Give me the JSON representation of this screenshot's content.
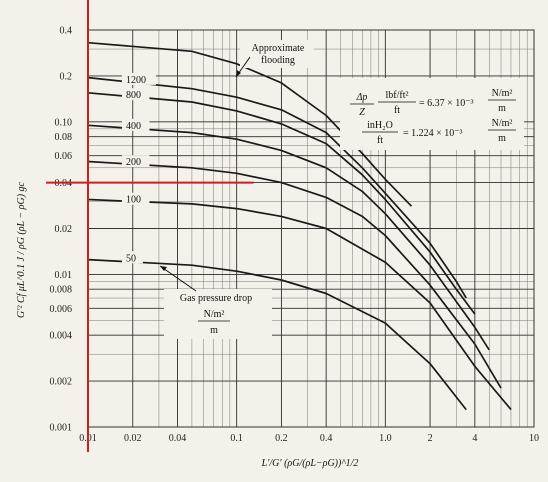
{
  "chart_data": {
    "type": "line",
    "xscale": "log",
    "yscale": "log",
    "xlim": [
      0.01,
      10
    ],
    "ylim": [
      0.001,
      0.4
    ],
    "grid": true,
    "x_ticks": [
      {
        "value": 0.01,
        "label": "0.01"
      },
      {
        "value": 0.02,
        "label": "0.02"
      },
      {
        "value": 0.04,
        "label": "0.04"
      },
      {
        "value": 0.1,
        "label": "0.1"
      },
      {
        "value": 0.2,
        "label": "0.2"
      },
      {
        "value": 0.4,
        "label": "0.4"
      },
      {
        "value": 1,
        "label": "1.0"
      },
      {
        "value": 2,
        "label": "2"
      },
      {
        "value": 4,
        "label": "4"
      },
      {
        "value": 10,
        "label": "10"
      }
    ],
    "y_ticks": [
      {
        "value": 0.001,
        "label": "0.001"
      },
      {
        "value": 0.002,
        "label": "0.002"
      },
      {
        "value": 0.004,
        "label": "0.004"
      },
      {
        "value": 0.006,
        "label": "0.006"
      },
      {
        "value": 0.008,
        "label": "0.008"
      },
      {
        "value": 0.01,
        "label": "0.01"
      },
      {
        "value": 0.02,
        "label": "0.02"
      },
      {
        "value": 0.04,
        "label": "0.04"
      },
      {
        "value": 0.06,
        "label": "0.06"
      },
      {
        "value": 0.08,
        "label": "0.08"
      },
      {
        "value": 0.1,
        "label": "0.10"
      },
      {
        "value": 0.2,
        "label": "0.2"
      },
      {
        "value": 0.4,
        "label": "0.4"
      }
    ],
    "xlabel": "L′/G′ (ρG/(ρL−ρG))^1/2",
    "ylabel": "G′² Cf μL^0.1 J / ρG (ρL − ρG) gc",
    "series": [
      {
        "name": "Approximate flooding",
        "x": [
          0.01,
          0.05,
          0.1,
          0.2,
          0.4,
          0.7,
          1.0,
          1.5
        ],
        "y": [
          0.33,
          0.29,
          0.24,
          0.18,
          0.11,
          0.062,
          0.042,
          0.028
        ]
      },
      {
        "name": "1200",
        "x": [
          0.01,
          0.05,
          0.1,
          0.2,
          0.4,
          0.7,
          1.0,
          2.0,
          3.0,
          3.5
        ],
        "y": [
          0.195,
          0.165,
          0.145,
          0.12,
          0.085,
          0.05,
          0.034,
          0.016,
          0.009,
          0.007
        ]
      },
      {
        "name": "800",
        "x": [
          0.01,
          0.05,
          0.1,
          0.2,
          0.4,
          0.7,
          1.0,
          2.0,
          3.0,
          4.0
        ],
        "y": [
          0.155,
          0.135,
          0.118,
          0.097,
          0.072,
          0.045,
          0.031,
          0.014,
          0.008,
          0.0055
        ]
      },
      {
        "name": "400",
        "x": [
          0.01,
          0.05,
          0.1,
          0.2,
          0.4,
          0.7,
          1.0,
          2.0,
          4.0,
          5.0
        ],
        "y": [
          0.095,
          0.085,
          0.077,
          0.065,
          0.05,
          0.035,
          0.025,
          0.0115,
          0.0045,
          0.0032
        ]
      },
      {
        "name": "200",
        "x": [
          0.01,
          0.05,
          0.1,
          0.2,
          0.4,
          0.7,
          1.0,
          2.0,
          4.0,
          6.0
        ],
        "y": [
          0.055,
          0.05,
          0.046,
          0.04,
          0.032,
          0.024,
          0.018,
          0.0085,
          0.0035,
          0.0018
        ]
      },
      {
        "name": "100",
        "x": [
          0.01,
          0.05,
          0.1,
          0.2,
          0.4,
          1.0,
          2.0,
          4.0,
          7.0
        ],
        "y": [
          0.031,
          0.029,
          0.027,
          0.024,
          0.02,
          0.012,
          0.0065,
          0.0025,
          0.0013
        ]
      },
      {
        "name": "50",
        "x": [
          0.01,
          0.05,
          0.1,
          0.2,
          0.4,
          1.0,
          2.0,
          3.5
        ],
        "y": [
          0.0125,
          0.0115,
          0.0105,
          0.0092,
          0.0075,
          0.0048,
          0.0026,
          0.0013
        ]
      }
    ],
    "curve_labels": [
      {
        "text": "1200",
        "x": 0.018,
        "y": 0.18
      },
      {
        "text": "800",
        "x": 0.018,
        "y": 0.143
      },
      {
        "text": "400",
        "x": 0.018,
        "y": 0.09
      },
      {
        "text": "200",
        "x": 0.018,
        "y": 0.052
      },
      {
        "text": "100",
        "x": 0.018,
        "y": 0.0295
      },
      {
        "text": "50",
        "x": 0.018,
        "y": 0.0122
      }
    ],
    "annotations": {
      "flooding_line1": "Approximate",
      "flooding_line2": "flooding",
      "gas_pressure_drop": "Gas pressure drop",
      "units_num": "N/m²",
      "units_den": "m",
      "conv1_lhs_num": "Δp",
      "conv1_lhs_den": "Z",
      "conv1_unit_num": "lbf/ft²",
      "conv1_unit_den": "ft",
      "conv1_value": "= 6.37 × 10⁻³",
      "conv1_rhs_num": "N/m²",
      "conv1_rhs_den": "m",
      "conv2_unit_num": "inH₂O",
      "conv2_unit_den": "ft",
      "conv2_value": "= 1.224 × 10⁻³",
      "conv2_rhs_num": "N/m²",
      "conv2_rhs_den": "m"
    },
    "overlay": {
      "color": "#cc1f1f",
      "x": 0.01,
      "y": 0.04,
      "x_end": 0.13
    }
  }
}
